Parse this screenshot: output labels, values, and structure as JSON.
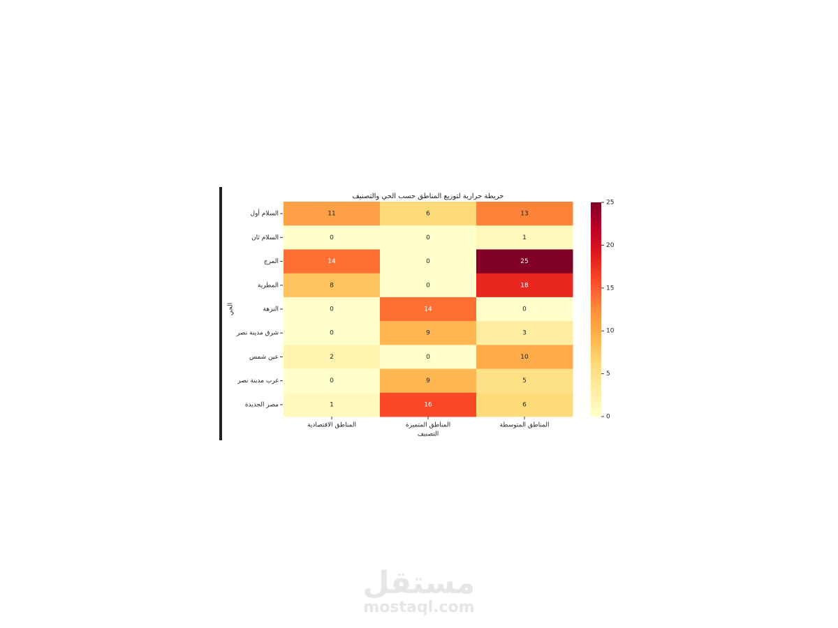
{
  "chart_data": {
    "type": "heatmap",
    "title": "خريطة حرارية لتوزيع المناطق حسب الحي والتصنيف",
    "x_label": "التصنيف",
    "y_label": "الحي",
    "x_categories": [
      "المناطق الاقتصادية",
      "المناطق المتميزة",
      "المناطق المتوسطة"
    ],
    "y_categories": [
      "السلام أول",
      "السلام ثان",
      "المرج",
      "المطرية",
      "النزهة",
      "شرق مدينة نصر",
      "عين شمس",
      "غرب مدينة نصر",
      "مصر الجديدة"
    ],
    "values": [
      [
        11,
        6,
        13
      ],
      [
        0,
        0,
        1
      ],
      [
        14,
        0,
        25
      ],
      [
        8,
        0,
        18
      ],
      [
        0,
        14,
        0
      ],
      [
        0,
        9,
        3
      ],
      [
        2,
        0,
        10
      ],
      [
        0,
        9,
        5
      ],
      [
        1,
        16,
        6
      ]
    ],
    "colormap": [
      "#ffffcc",
      "#ffeda0",
      "#fed976",
      "#feb24c",
      "#fd8d3c",
      "#fc4e2a",
      "#e31a1c",
      "#bd0026",
      "#800026"
    ],
    "clim": [
      0,
      25
    ],
    "cticks": [
      0,
      5,
      10,
      15,
      20,
      25
    ]
  },
  "watermark": {
    "logo": "مستقل",
    "site": "mostaql.com"
  }
}
